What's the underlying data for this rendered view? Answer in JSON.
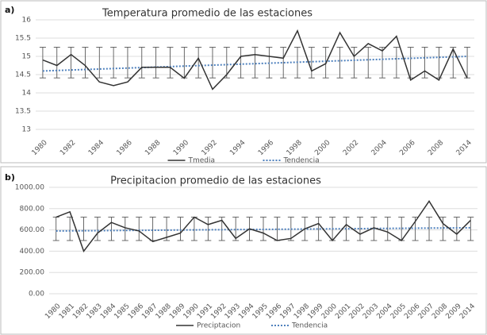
{
  "chart_data": [
    {
      "type": "line",
      "panel": "a)",
      "title": "Temperatura promedio de las estaciones",
      "categories": [
        "1980",
        null,
        "1982",
        null,
        "1984",
        null,
        "1986",
        null,
        "1988",
        null,
        "1990",
        null,
        "1992",
        null,
        "1994",
        null,
        "1996",
        null,
        "1998",
        null,
        "2000",
        null,
        "2002",
        null,
        "2004",
        null,
        "2006",
        null,
        "2008",
        null,
        "2014"
      ],
      "series": [
        {
          "name": "Tmedia",
          "color": "#333333",
          "values": [
            14.9,
            14.75,
            15.05,
            14.75,
            14.3,
            14.2,
            14.3,
            14.7,
            14.7,
            14.7,
            14.4,
            14.95,
            14.1,
            14.5,
            15.0,
            15.05,
            15.0,
            14.95,
            15.7,
            14.6,
            14.8,
            15.65,
            15.0,
            15.35,
            15.15,
            15.55,
            14.35,
            14.6,
            14.35,
            15.2,
            14.4
          ]
        }
      ],
      "trend": {
        "name": "Tendencia",
        "color": "#4f81bd",
        "start": 14.6,
        "end": 15.0
      },
      "error_center": 14.83,
      "error": 0.42,
      "ylim": [
        13,
        16
      ],
      "yticks": [
        13,
        {
          "value": 13.5,
          "label": "13.5"
        },
        14,
        {
          "value": 14.5,
          "label": "14.5"
        },
        15,
        {
          "value": 15.5,
          "label": "15.5"
        },
        16
      ],
      "grid": true
    },
    {
      "type": "line",
      "panel": "b)",
      "title": "Precipitacion promedio de las estaciones",
      "categories": [
        "1980",
        "1981",
        "1982",
        "1983",
        "1984",
        "1985",
        "1986",
        "1987",
        "1988",
        "1989",
        "1990",
        "1991",
        "1992",
        "1993",
        "1994",
        "1995",
        "1996",
        "1997",
        "1998",
        "1999",
        "2000",
        "2001",
        "2002",
        "2003",
        "2004",
        "2005",
        "2006",
        "2007",
        "2008",
        "2009",
        "2014"
      ],
      "series": [
        {
          "name": "Preciptacion",
          "color": "#333333",
          "values": [
            720,
            770,
            400,
            570,
            670,
            620,
            590,
            490,
            530,
            570,
            720,
            650,
            690,
            520,
            610,
            570,
            500,
            520,
            610,
            660,
            500,
            650,
            560,
            620,
            580,
            500,
            680,
            870,
            660,
            560,
            690
          ]
        }
      ],
      "trend": {
        "name": "Tendencia",
        "color": "#4f81bd",
        "start": 590,
        "end": 620
      },
      "error_center": 610,
      "error": 110,
      "ylim": [
        0,
        1000
      ],
      "yticks": [
        {
          "value": 0,
          "label": "0.00"
        },
        {
          "value": 200,
          "label": "200.00"
        },
        {
          "value": 400,
          "label": "400.00"
        },
        {
          "value": 600,
          "label": "600.00"
        },
        {
          "value": 800,
          "label": "800.00"
        },
        {
          "value": 1000,
          "label": "1000.00"
        }
      ],
      "grid": true
    }
  ]
}
